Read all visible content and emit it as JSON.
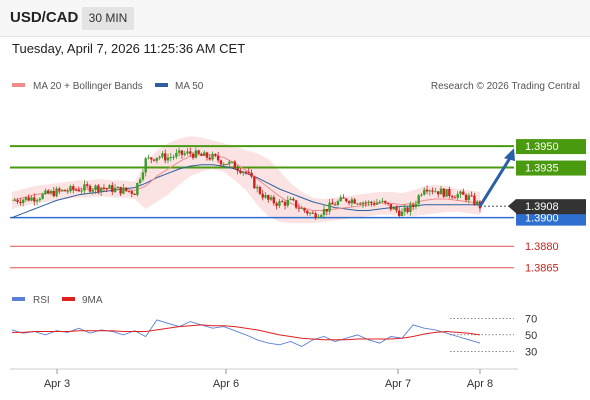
{
  "header": {
    "symbol": "USD/CAD",
    "timeframe": "30 MIN",
    "datetime": "Tuesday, April 7, 2026 11:25:36 AM CET"
  },
  "price_panel": {
    "legend": [
      {
        "label": "MA 20 + Bollinger Bands",
        "color": "#f28b8b"
      },
      {
        "label": "MA 50",
        "color": "#2d5f9e"
      }
    ],
    "copyright": "Research © 2026 Trading Central"
  },
  "rsi_panel": {
    "legend": [
      {
        "label": "RSI",
        "color": "#5b7fd6"
      },
      {
        "label": "9MA",
        "color": "#e02020"
      }
    ]
  },
  "colors": {
    "resistance": "#4a9a10",
    "support": "#2f6fd0",
    "lower_support": "#e05050",
    "arrow": "#2b5fa8",
    "candle_up": "#3a9a2a",
    "candle_down": "#d02020",
    "bollinger_fill": "#fbdcdc"
  },
  "chart_data": [
    {
      "type": "candlestick",
      "title": "USD/CAD 30 MIN",
      "y_range": [
        1.3855,
        1.3985
      ],
      "x_labels": [
        "Apr 3",
        "Apr 6",
        "Apr 7",
        "Apr 8"
      ],
      "current_price": 1.3908,
      "levels": [
        {
          "value": 1.395,
          "label": "1.3950",
          "kind": "resistance"
        },
        {
          "value": 1.3935,
          "label": "1.3935",
          "kind": "resistance"
        },
        {
          "value": 1.39,
          "label": "1.3900",
          "kind": "support"
        },
        {
          "value": 1.388,
          "label": "1.3880",
          "kind": "lower_support"
        },
        {
          "value": 1.3865,
          "label": "1.3865",
          "kind": "lower_support"
        }
      ],
      "price_series": [
        1.3912,
        1.3913,
        1.3914,
        1.3916,
        1.3918,
        1.3919,
        1.392,
        1.3921,
        1.3921,
        1.392,
        1.3919,
        1.3918,
        1.394,
        1.3943,
        1.3942,
        1.3944,
        1.3945,
        1.3943,
        1.3942,
        1.3939,
        1.3936,
        1.3932,
        1.392,
        1.3912,
        1.391,
        1.3911,
        1.3906,
        1.3902,
        1.3905,
        1.391,
        1.3913,
        1.3912,
        1.391,
        1.3911,
        1.3907,
        1.3903,
        1.3908,
        1.3922,
        1.3919,
        1.3917,
        1.3916,
        1.3914,
        1.3908
      ],
      "ma50": [
        1.39,
        1.3903,
        1.3906,
        1.3909,
        1.3912,
        1.3914,
        1.3916,
        1.3917,
        1.3918,
        1.3919,
        1.392,
        1.3921,
        1.3924,
        1.3928,
        1.3931,
        1.3934,
        1.3936,
        1.3937,
        1.3937,
        1.3936,
        1.3934,
        1.3931,
        1.3928,
        1.3924,
        1.392,
        1.3917,
        1.3914,
        1.3911,
        1.3909,
        1.3907,
        1.3906,
        1.3905,
        1.3905,
        1.3906,
        1.3907,
        1.3908,
        1.3908,
        1.3909,
        1.3909,
        1.3909,
        1.3909,
        1.3909,
        1.3909
      ],
      "ma20": [
        1.3912,
        1.3914,
        1.3916,
        1.3917,
        1.3918,
        1.3919,
        1.392,
        1.392,
        1.3921,
        1.392,
        1.392,
        1.3919,
        1.3922,
        1.3929,
        1.3934,
        1.3939,
        1.3943,
        1.3944,
        1.3944,
        1.3942,
        1.3938,
        1.3933,
        1.3927,
        1.3921,
        1.3915,
        1.391,
        1.3907,
        1.3905,
        1.3905,
        1.3906,
        1.3907,
        1.3908,
        1.3909,
        1.391,
        1.391,
        1.3909,
        1.391,
        1.3912,
        1.3913,
        1.3913,
        1.3912,
        1.3911,
        1.391
      ],
      "bb_width": [
        0.0006,
        0.0006,
        0.0006,
        0.0006,
        0.0006,
        0.0006,
        0.0006,
        0.0006,
        0.0006,
        0.0006,
        0.0006,
        0.0006,
        0.0016,
        0.0018,
        0.0018,
        0.0016,
        0.0014,
        0.0012,
        0.001,
        0.001,
        0.0012,
        0.0014,
        0.0018,
        0.002,
        0.0018,
        0.0014,
        0.0011,
        0.0009,
        0.0008,
        0.0008,
        0.0008,
        0.0008,
        0.0008,
        0.0008,
        0.0008,
        0.0008,
        0.0009,
        0.001,
        0.001,
        0.0009,
        0.0008,
        0.0008,
        0.0008
      ],
      "projection": {
        "from": 1.3908,
        "to": 1.395
      }
    },
    {
      "type": "line",
      "title": "RSI",
      "y_ticks": [
        70,
        50,
        30
      ],
      "series": [
        {
          "name": "RSI",
          "values": [
            56,
            52,
            54,
            50,
            55,
            53,
            58,
            52,
            56,
            54,
            50,
            55,
            48,
            68,
            64,
            60,
            66,
            62,
            58,
            60,
            55,
            50,
            44,
            40,
            38,
            42,
            36,
            44,
            48,
            42,
            46,
            50,
            44,
            40,
            48,
            46,
            62,
            58,
            56,
            52,
            48,
            44,
            40
          ]
        },
        {
          "name": "9MA",
          "values": [
            53,
            53,
            54,
            54,
            54,
            54,
            55,
            55,
            55,
            55,
            54,
            54,
            54,
            56,
            58,
            60,
            61,
            62,
            61,
            61,
            60,
            58,
            56,
            53,
            50,
            48,
            46,
            45,
            44,
            44,
            44,
            45,
            45,
            45,
            45,
            46,
            48,
            51,
            53,
            54,
            53,
            52,
            50
          ]
        }
      ]
    }
  ]
}
